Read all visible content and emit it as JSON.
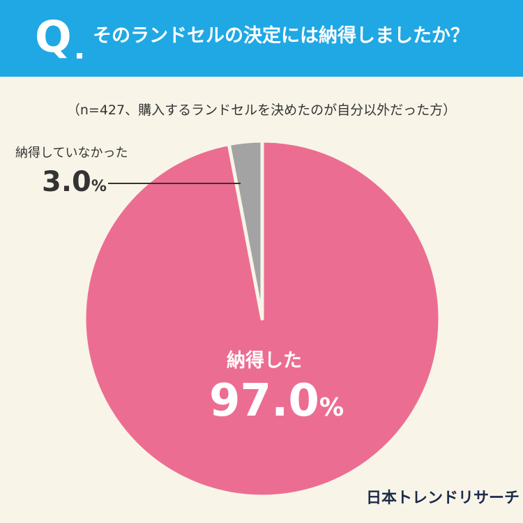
{
  "header": {
    "q_mark": "Q",
    "question": "そのランドセルの決定には納得しましたか？"
  },
  "subtitle": "（n=427、購入するランドセルを決めたのが自分以外だった方）",
  "chart_data": {
    "type": "pie",
    "slices": [
      {
        "label": "納得した",
        "value": 97.0,
        "display": "97.0",
        "unit": "%",
        "color": "#ec6d92"
      },
      {
        "label": "納得していなかった",
        "value": 3.0,
        "display": "3.0",
        "unit": "%",
        "color": "#a3a3a3"
      }
    ],
    "start": "top",
    "direction": "clockwise",
    "separator_color": "#f8f5e8"
  },
  "brand": "日本トレンドリサーチ"
}
